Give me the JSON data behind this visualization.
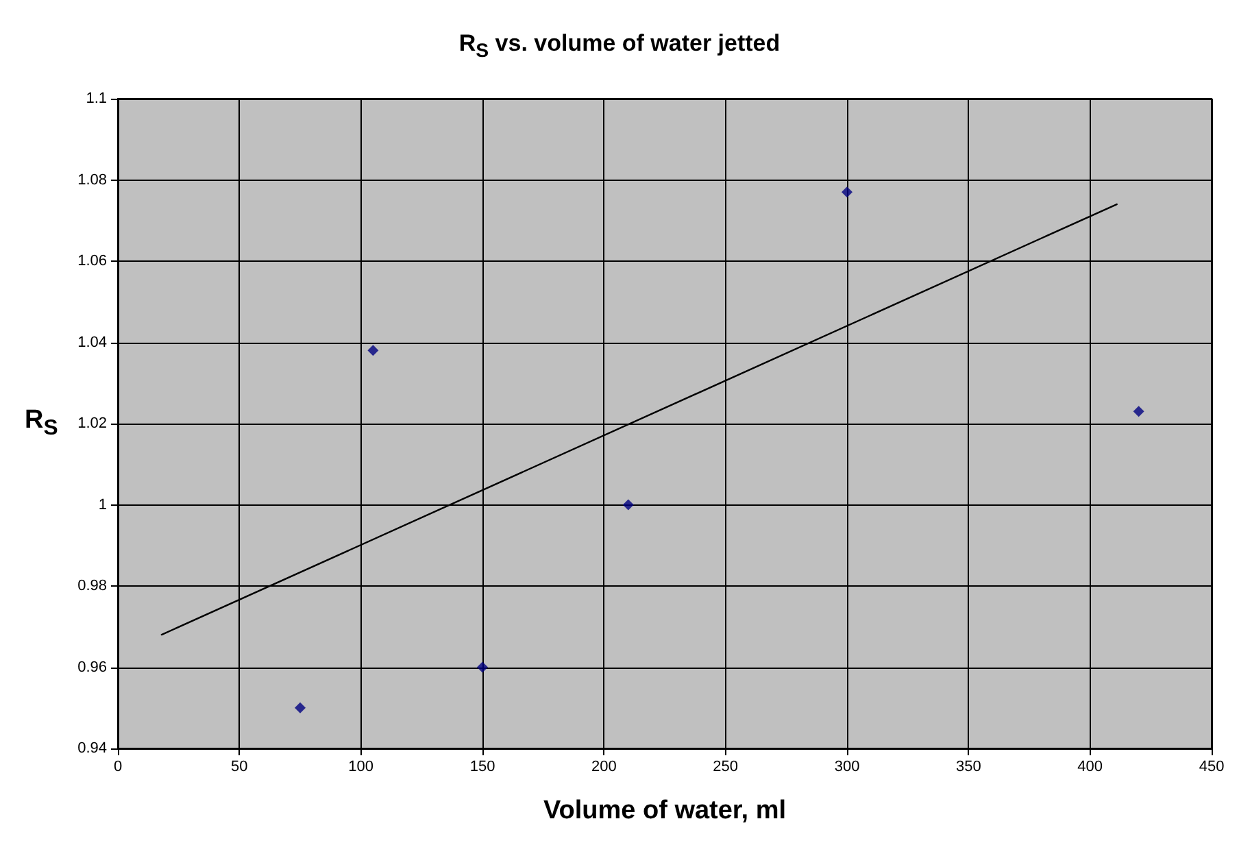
{
  "chart_data": {
    "type": "scatter",
    "title": "R$_{S}$ vs. volume of water jetted",
    "xlabel": "Volume of water, ml",
    "ylabel": "R$_{S}$",
    "series": [
      {
        "color": "#000080",
        "marker": "diamond",
        "x": [
          75,
          105,
          150,
          210,
          300,
          420
        ],
        "values": [
          0.95,
          1.038,
          0.96,
          1.0,
          1.077,
          1.023
        ]
      },
      {
        "type": "line",
        "color": "#000000",
        "marker": "none",
        "line_style": "solid",
        "x": [
          18,
          411
        ],
        "values": [
          0.968,
          1.074
        ]
      }
    ],
    "xlim": [
      0,
      450
    ],
    "xticks": [
      0,
      50,
      100,
      150,
      200,
      250,
      300,
      350,
      400,
      450
    ],
    "ylim": [
      0.94,
      1.1
    ],
    "yticks": [
      0.94,
      0.96,
      0.98,
      1,
      1.02,
      1.04,
      1.06,
      1.08,
      1.1
    ],
    "grid": true
  }
}
